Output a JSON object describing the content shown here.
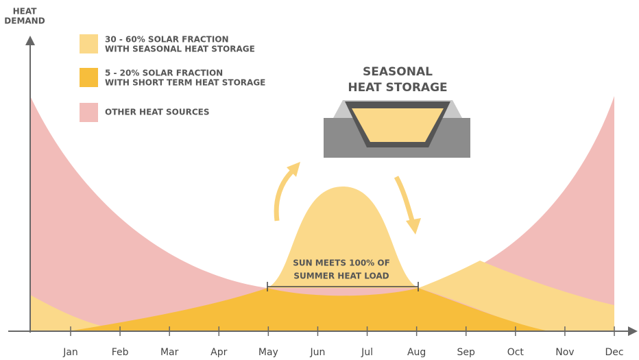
{
  "y_axis_label": {
    "lines": [
      "HEAT",
      "DEMAND"
    ]
  },
  "legend": [
    {
      "lines": [
        "30 - 60% SOLAR FRACTION",
        "WITH SEASONAL HEAT STORAGE"
      ]
    },
    {
      "lines": [
        "5 - 20% SOLAR FRACTION",
        "WITH SHORT TERM HEAT STORAGE"
      ]
    },
    {
      "lines": [
        "OTHER HEAT SOURCES"
      ]
    }
  ],
  "storage_title": {
    "lines": [
      "SEASONAL",
      "HEAT STORAGE"
    ]
  },
  "annotation": {
    "lines": [
      "SUN MEETS 100% OF",
      "SUMMER HEAT LOAD"
    ]
  },
  "months": [
    "Jan",
    "Feb",
    "Mar",
    "Apr",
    "May",
    "Jun",
    "Jul",
    "Aug",
    "Sep",
    "Oct",
    "Nov",
    "Dec"
  ]
}
